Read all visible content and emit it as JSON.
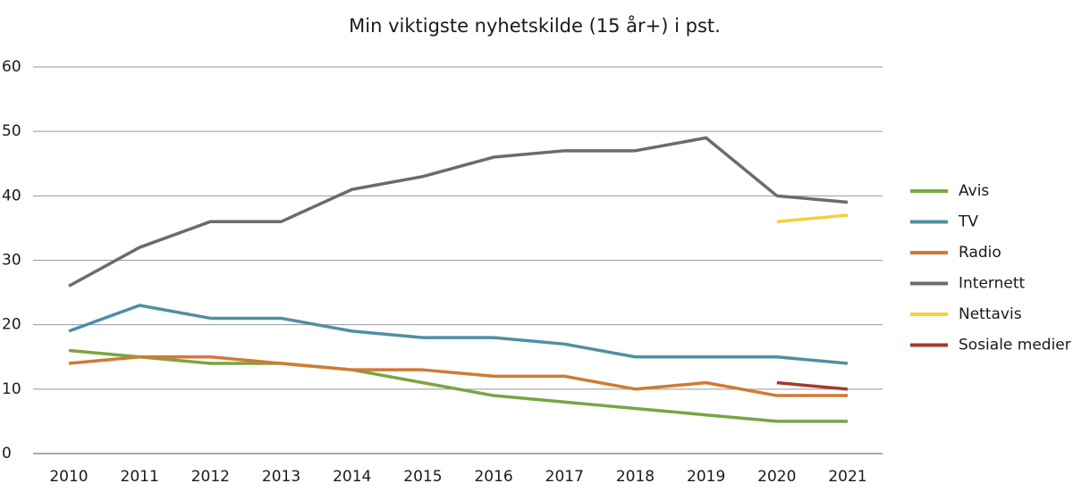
{
  "chart_data": {
    "type": "line",
    "title": "Min viktigste nyhetskilde (15 år+) i pst.",
    "categories": [
      "2010",
      "2011",
      "2012",
      "2013",
      "2014",
      "2015",
      "2016",
      "2017",
      "2018",
      "2019",
      "2020",
      "2021"
    ],
    "series": [
      {
        "name": "Avis",
        "color": "#7aa543",
        "values": [
          16,
          15,
          14,
          14,
          13,
          11,
          9,
          8,
          7,
          6,
          5,
          5
        ]
      },
      {
        "name": "TV",
        "color": "#4f8fa3",
        "values": [
          19,
          23,
          21,
          21,
          19,
          18,
          18,
          17,
          15,
          15,
          15,
          14
        ]
      },
      {
        "name": "Radio",
        "color": "#d07a35",
        "values": [
          14,
          15,
          15,
          14,
          13,
          13,
          12,
          12,
          10,
          11,
          9,
          9
        ]
      },
      {
        "name": "Internett",
        "color": "#6b6b6b",
        "values": [
          26,
          32,
          36,
          36,
          41,
          43,
          46,
          47,
          47,
          49,
          40,
          39
        ]
      },
      {
        "name": "Nettavis",
        "color": "#f0d23a",
        "values": [
          null,
          null,
          null,
          null,
          null,
          null,
          null,
          null,
          null,
          null,
          36,
          37
        ]
      },
      {
        "name": "Sosiale medier",
        "color": "#a23b2e",
        "values": [
          null,
          null,
          null,
          null,
          null,
          null,
          null,
          null,
          null,
          null,
          11,
          10
        ]
      }
    ],
    "ylim": [
      0,
      60
    ],
    "yticks": [
      0,
      10,
      20,
      30,
      40,
      50,
      60
    ],
    "grid": true,
    "legend": "right"
  }
}
